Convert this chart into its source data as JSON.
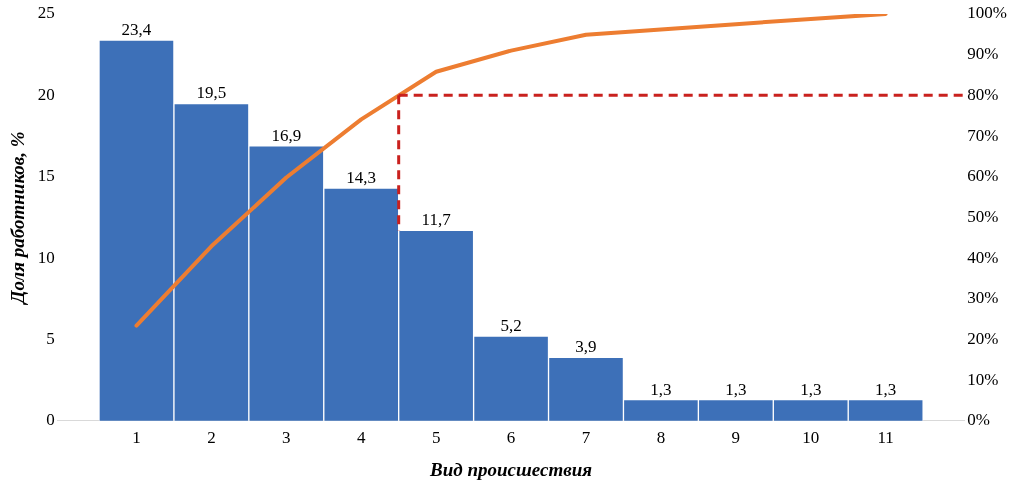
{
  "chart_data": {
    "type": "bar",
    "xlabel": "Вид происшествия",
    "ylabel": "Доля работников, %",
    "x": [
      1,
      2,
      3,
      4,
      5,
      6,
      7,
      8,
      9,
      10,
      11
    ],
    "xlim": [
      0.5,
      11.5
    ],
    "xticks": [
      1,
      2,
      3,
      4,
      5,
      6,
      7,
      8,
      9,
      10,
      11
    ],
    "ylim": [
      0,
      25
    ],
    "yticks": [
      0,
      5,
      10,
      15,
      20,
      25
    ],
    "y2lim": [
      0,
      100
    ],
    "y2ticks": [
      {
        "value": 0,
        "label": "0%"
      },
      {
        "value": 10,
        "label": "10%"
      },
      {
        "value": 20,
        "label": "20%"
      },
      {
        "value": 30,
        "label": "30%"
      },
      {
        "value": 40,
        "label": "40%"
      },
      {
        "value": 50,
        "label": "50%"
      },
      {
        "value": 60,
        "label": "60%"
      },
      {
        "value": 70,
        "label": "70%"
      },
      {
        "value": 80,
        "label": "80%"
      },
      {
        "value": 90,
        "label": "90%"
      },
      {
        "value": 100,
        "label": "100%"
      }
    ],
    "grid": false,
    "legend": false,
    "marker": "none",
    "series": [
      {
        "color": "#3d70b8",
        "values": [
          23.4,
          19.5,
          16.9,
          14.3,
          11.7,
          5.2,
          3.9,
          1.3,
          1.3,
          1.3,
          1.3
        ],
        "value_labels": [
          "23,4",
          "19,5",
          "16,9",
          "14,3",
          "11,7",
          "5,2",
          "3,9",
          "1,3",
          "1,3",
          "1,3",
          "1,3"
        ]
      },
      {
        "type": "line",
        "axis": "y2",
        "color": "#ed7d31",
        "line_style": "solid",
        "values": [
          23.4,
          42.9,
          59.8,
          74.1,
          85.8,
          91,
          94.9,
          96.2,
          97.5,
          98.8,
          100
        ]
      }
    ],
    "ref_lines": [
      {
        "axis": "x",
        "value": 4.5,
        "color": "#c9211e",
        "line_style": "dashed"
      },
      {
        "axis": "y2",
        "value": 80,
        "color": "#c9211e",
        "line_style": "dashed"
      }
    ]
  }
}
